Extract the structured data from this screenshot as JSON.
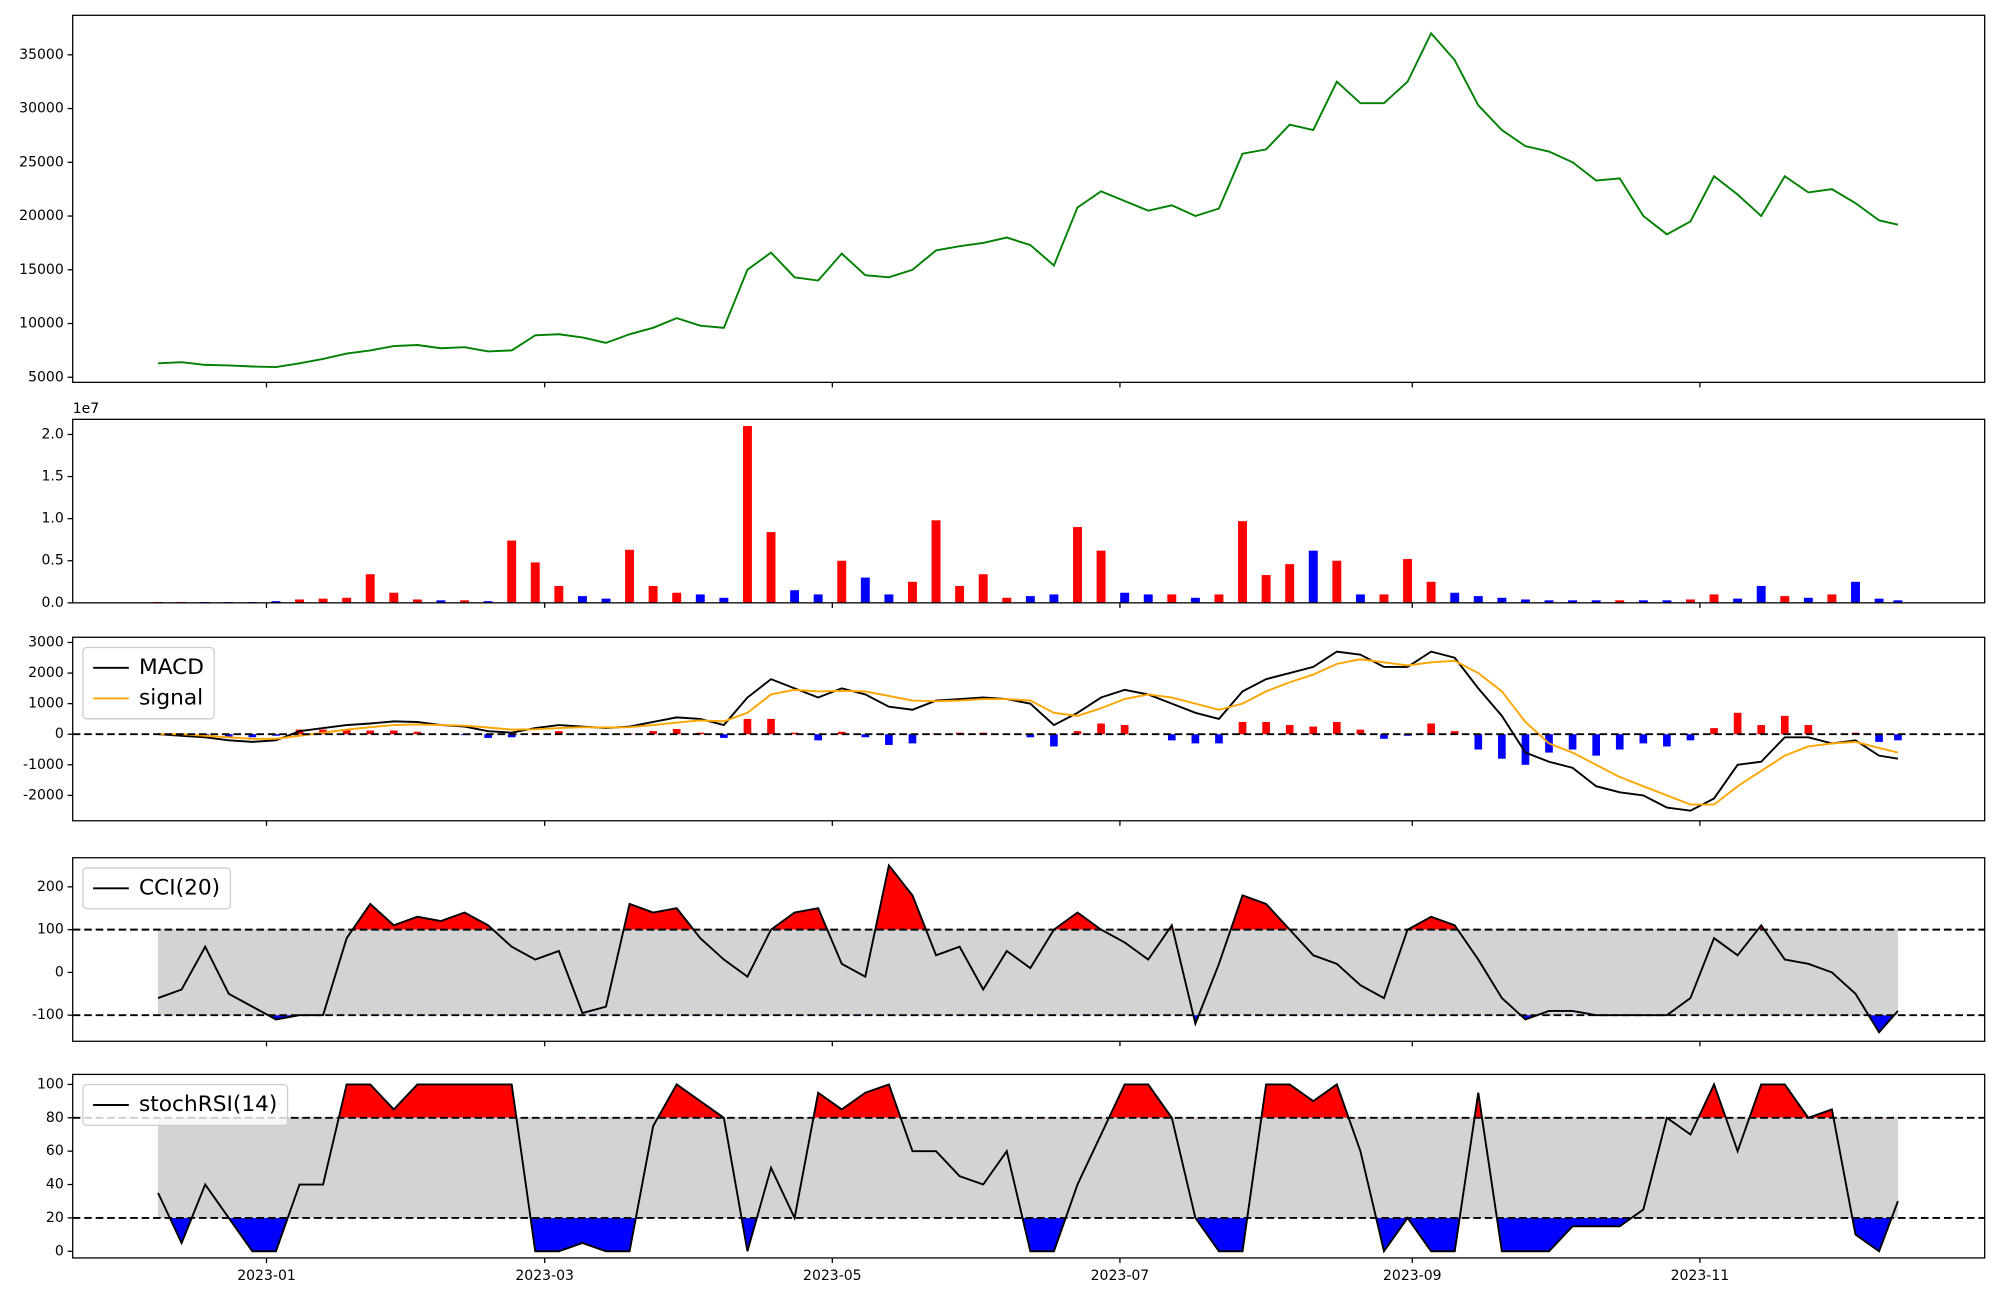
{
  "chart_data": {
    "x": [
      -23,
      -18,
      -13,
      -8,
      -3,
      2,
      7,
      12,
      17,
      22,
      27,
      32,
      37,
      42,
      47,
      52,
      57,
      62,
      67,
      72,
      77,
      82,
      87,
      92,
      97,
      102,
      107,
      112,
      117,
      122,
      127,
      132,
      137,
      142,
      147,
      152,
      157,
      162,
      167,
      172,
      177,
      182,
      187,
      192,
      197,
      202,
      207,
      212,
      217,
      222,
      227,
      232,
      237,
      242,
      247,
      252,
      257,
      262,
      267,
      272,
      277,
      282,
      287,
      292,
      297,
      302,
      307,
      312,
      317,
      322,
      327,
      332,
      337,
      342,
      346
    ],
    "xlim": [
      -41.1,
      364.4
    ],
    "xticks": [
      {
        "value": 0,
        "label": "2023-01"
      },
      {
        "value": 59,
        "label": "2023-03"
      },
      {
        "value": 120,
        "label": "2023-05"
      },
      {
        "value": 181,
        "label": "2023-07"
      },
      {
        "value": 243,
        "label": "2023-09"
      },
      {
        "value": 304,
        "label": "2023-11"
      }
    ],
    "panels": [
      {
        "type": "line",
        "ylim": [
          4526,
          38676
        ],
        "yticks": [
          5000,
          10000,
          15000,
          20000,
          25000,
          30000,
          35000
        ],
        "series": [
          {
            "color": "green",
            "values": [
              6300,
              6400,
              6150,
              6100,
              6000,
              5950,
              6300,
              6700,
              7200,
              7500,
              7900,
              8000,
              7700,
              7800,
              7400,
              7500,
              8900,
              9000,
              8700,
              8200,
              9000,
              9600,
              10500,
              9800,
              9600,
              15000,
              16600,
              14300,
              14000,
              16500,
              14500,
              14300,
              15000,
              16800,
              17200,
              17500,
              18000,
              17300,
              15400,
              20800,
              22300,
              21400,
              20500,
              21000,
              20000,
              20700,
              25800,
              26200,
              28500,
              28000,
              32500,
              30500,
              30500,
              32500,
              37000,
              34500,
              30300,
              28000,
              26500,
              26000,
              25000,
              23300,
              23500,
              20000,
              18300,
              19500,
              23700,
              22000,
              20000,
              23700,
              22200,
              22500,
              21200,
              19600,
              19200
            ]
          }
        ]
      },
      {
        "type": "bar",
        "offset_label": "1e7",
        "ylim": [
          0,
          2.18
        ],
        "yticks": [
          {
            "value": 0,
            "label": "0.0"
          },
          0.5,
          {
            "value": 1,
            "label": "1.0"
          },
          1.5,
          {
            "value": 2,
            "label": "2.0"
          }
        ],
        "up_color": "red",
        "down_color": "blue",
        "values": [
          0.01,
          0.01,
          0.01,
          0.01,
          0.01,
          0.02,
          0.04,
          0.05,
          0.06,
          0.34,
          0.12,
          0.04,
          0.03,
          0.03,
          0.02,
          0.74,
          0.48,
          0.2,
          0.08,
          0.05,
          0.63,
          0.2,
          0.12,
          0.1,
          0.06,
          2.1,
          0.84,
          0.15,
          0.1,
          0.5,
          0.3,
          0.1,
          0.25,
          0.98,
          0.2,
          0.34,
          0.06,
          0.08,
          0.1,
          0.9,
          0.62,
          0.12,
          0.1,
          0.1,
          0.06,
          0.1,
          0.97,
          0.33,
          0.46,
          0.62,
          0.5,
          0.1,
          0.1,
          0.52,
          0.25,
          0.12,
          0.08,
          0.06,
          0.04,
          0.03,
          0.03,
          0.03,
          0.03,
          0.03,
          0.03,
          0.04,
          0.1,
          0.05,
          0.2,
          0.08,
          0.06,
          0.1,
          0.25,
          0.05,
          0.03
        ]
      },
      {
        "type": "line",
        "ylim": [
          -2830,
          3170
        ],
        "yticks": [
          -2000,
          -1000,
          0,
          1000,
          2000,
          3000
        ],
        "hlines": [
          0
        ],
        "legend": "upper left",
        "series": [
          {
            "name": "MACD",
            "color": "black",
            "values": [
              0,
              -50,
              -100,
              -200,
              -250,
              -200,
              100,
              200,
              300,
              350,
              420,
              400,
              300,
              250,
              100,
              50,
              200,
              300,
              250,
              200,
              250,
              400,
              550,
              500,
              300,
              1200,
              1800,
              1500,
              1200,
              1500,
              1300,
              900,
              800,
              1100,
              1150,
              1200,
              1150,
              1000,
              300,
              700,
              1200,
              1450,
              1300,
              1000,
              700,
              500,
              1400,
              1800,
              2000,
              2200,
              2700,
              2600,
              2200,
              2200,
              2700,
              2500,
              1500,
              600,
              -600,
              -900,
              -1100,
              -1700,
              -1900,
              -2000,
              -2400,
              -2500,
              -2100,
              -1000,
              -900,
              -100,
              -100,
              -300,
              -200,
              -700,
              -800
            ]
          },
          {
            "name": "signal",
            "color": "orange",
            "values": [
              0,
              0,
              -50,
              -100,
              -150,
              -150,
              -50,
              50,
              150,
              230,
              300,
              320,
              300,
              280,
              220,
              150,
              160,
              200,
              230,
              220,
              230,
              300,
              380,
              450,
              420,
              700,
              1300,
              1450,
              1400,
              1420,
              1400,
              1250,
              1100,
              1080,
              1100,
              1150,
              1150,
              1100,
              700,
              600,
              850,
              1150,
              1300,
              1200,
              1000,
              800,
              1000,
              1400,
              1700,
              1950,
              2300,
              2450,
              2350,
              2250,
              2350,
              2400,
              2000,
              1400,
              400,
              -300,
              -600,
              -1000,
              -1400,
              -1700,
              -2000,
              -2300,
              -2300,
              -1700,
              -1200,
              -700,
              -400,
              -300,
              -250,
              -450,
              -600
            ]
          }
        ],
        "histogram": {
          "pos_color": "red",
          "neg_color": "blue",
          "values": [
            0,
            -50,
            -50,
            -100,
            -100,
            -50,
            150,
            150,
            150,
            120,
            120,
            80,
            0,
            -30,
            -120,
            -100,
            40,
            100,
            20,
            -20,
            20,
            100,
            170,
            50,
            -120,
            500,
            500,
            50,
            -200,
            80,
            -100,
            -350,
            -300,
            20,
            50,
            50,
            0,
            -100,
            -400,
            100,
            350,
            300,
            0,
            -200,
            -300,
            -300,
            400,
            400,
            300,
            250,
            400,
            150,
            -150,
            -50,
            350,
            100,
            -500,
            -800,
            -1000,
            -600,
            -500,
            -700,
            -500,
            -300,
            -400,
            -200,
            200,
            700,
            300,
            600,
            300,
            0,
            50,
            -250,
            -200
          ]
        }
      },
      {
        "type": "line",
        "ylim": [
          -161,
          268
        ],
        "yticks": [
          -100,
          0,
          100,
          200
        ],
        "hlines": [
          -100,
          100
        ],
        "legend": "upper left",
        "bands": [
          -100,
          100
        ],
        "band_color": "lightgray",
        "upper_fill": "red",
        "lower_fill": "blue",
        "series": [
          {
            "name": "CCI(20)",
            "color": "black",
            "values": [
              -60,
              -40,
              60,
              -50,
              -80,
              -110,
              -100,
              -100,
              80,
              160,
              110,
              130,
              120,
              140,
              110,
              60,
              30,
              50,
              -95,
              -80,
              160,
              140,
              150,
              80,
              30,
              -10,
              100,
              140,
              150,
              20,
              -10,
              250,
              180,
              40,
              60,
              -40,
              50,
              10,
              100,
              140,
              100,
              70,
              30,
              110,
              -120,
              20,
              180,
              160,
              100,
              40,
              20,
              -30,
              -60,
              100,
              130,
              110,
              30,
              -60,
              -110,
              -90,
              -90,
              -100,
              -100,
              -100,
              -100,
              -60,
              80,
              40,
              110,
              30,
              20,
              0,
              -50,
              -140,
              -90
            ]
          }
        ]
      },
      {
        "type": "line",
        "ylim": [
          -4,
          106
        ],
        "yticks": [
          0,
          20,
          40,
          60,
          80,
          100
        ],
        "hlines": [
          20,
          80
        ],
        "legend": "upper left",
        "bands": [
          20,
          80
        ],
        "band_color": "lightgray",
        "upper_fill": "red",
        "lower_fill": "blue",
        "series": [
          {
            "name": "stochRSI(14)",
            "color": "black",
            "values": [
              35,
              5,
              40,
              20,
              0,
              0,
              40,
              40,
              100,
              100,
              85,
              100,
              100,
              100,
              100,
              100,
              0,
              0,
              5,
              0,
              0,
              75,
              100,
              90,
              80,
              0,
              50,
              20,
              95,
              85,
              95,
              100,
              60,
              60,
              45,
              40,
              60,
              0,
              0,
              40,
              70,
              100,
              100,
              80,
              20,
              0,
              0,
              100,
              100,
              90,
              100,
              60,
              0,
              20,
              0,
              0,
              95,
              0,
              0,
              0,
              15,
              15,
              15,
              25,
              80,
              70,
              100,
              60,
              100,
              100,
              80,
              85,
              10,
              0,
              30
            ]
          }
        ]
      }
    ]
  }
}
